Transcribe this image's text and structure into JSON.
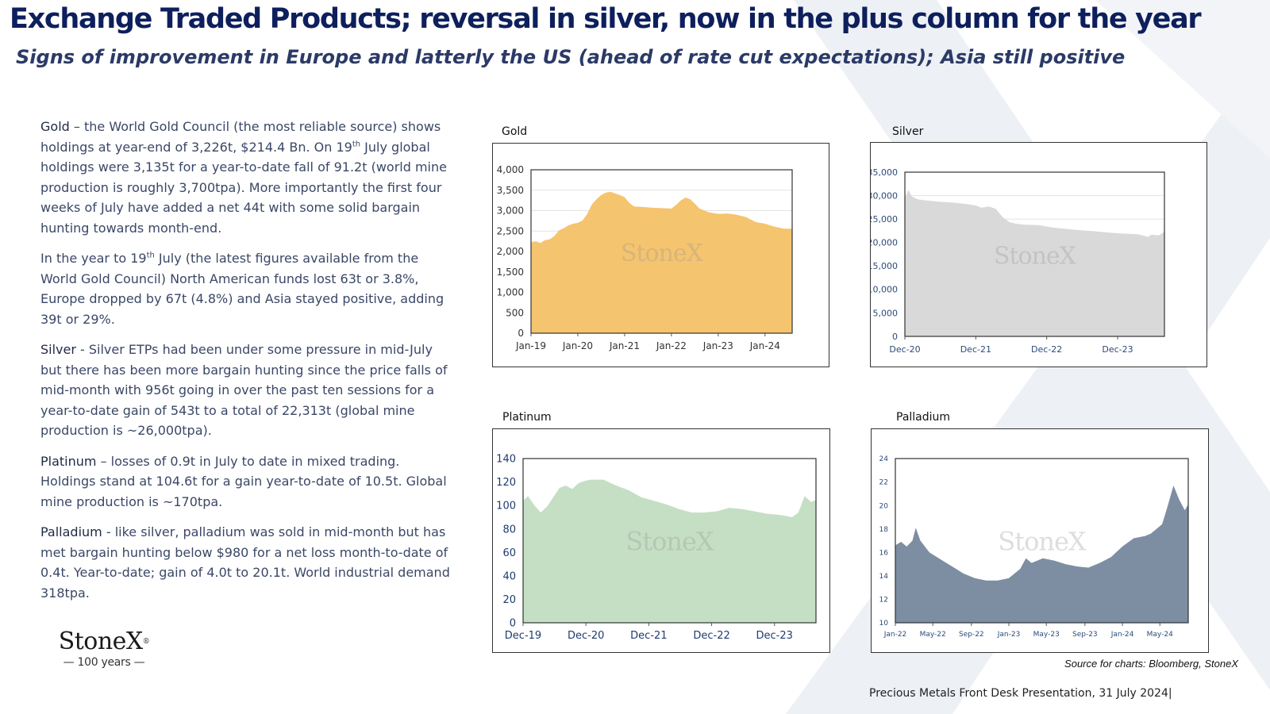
{
  "header": {
    "title": "Exchange Traded Products; reversal in silver, now in the plus column for the year",
    "subtitle": "Signs of improvement in Europe and latterly the US (ahead of rate cut expectations); Asia still positive"
  },
  "body": {
    "gold": {
      "lead": "Gold",
      "text_1": " –  the World Gold Council (the most reliable source) shows holdings at year-end of 3,226t, $214.4 Bn.  On 19",
      "sup": "th",
      "text_2": " July global holdings were 3,135t for a year-to-date fall of 91.2t (world mine production is roughly 3,700tpa). More importantly the first four weeks of July have added a net 44t with some solid bargain hunting towards month-end."
    },
    "regional": {
      "text_1": " In the year to 19",
      "sup": "th",
      "text_2": " July (the latest figures available from the World Gold Council) North American funds lost 63t or 3.8%, Europe dropped by 67t (4.8%) and Asia stayed positive, adding 39t or 29%."
    },
    "silver": {
      "lead": "Silver",
      "text": " - Silver ETPs had been under some pressure in mid-July but there has been more bargain hunting since the price falls of mid-month with 956t going in over the past ten sessions for a year-to-date gain of 543t to a total of 22,313t (global mine production is ~26,000tpa)."
    },
    "platinum": {
      "lead": "Platinum",
      "text": " – losses of 0.9t in July to date in mixed trading. Holdings stand at 104.6t for a gain year-to-date of 10.5t.  Global mine production is ~170tpa."
    },
    "palladium": {
      "lead": "Palladium",
      "text": " -  like silver, palladium was sold in mid-month but has met bargain hunting below $980 for a net loss month-to-date of 0.4t.  Year-to-date; gain of 4.0t to 20.1t. World industrial demand 318tpa."
    }
  },
  "logo": {
    "name": "StoneX",
    "reg": "®",
    "years": "— 100 years —"
  },
  "source": "Source for charts: Bloomberg, StoneX",
  "footer": "Precious Metals Front Desk Presentation, 31 July 2024|",
  "colors": {
    "navy": "#0d1f5c",
    "gold": "#f5c46f",
    "silver": "#d9d9d9",
    "platinum": "#c5dfc5",
    "palladium": "#7d8ea3"
  },
  "chart_data": [
    {
      "id": "gold",
      "type": "area",
      "title": "Gold",
      "watermark": "StoneX",
      "color": "#f5c46f",
      "xlabel": "",
      "ylabel": "",
      "x_start": 2019.0,
      "x_end": 2024.58,
      "ylim": [
        0,
        4000
      ],
      "yticks": [
        0,
        500,
        1000,
        1500,
        2000,
        2500,
        3000,
        3500,
        4000
      ],
      "ytick_labels": [
        "0",
        "500",
        "1,000",
        "1,500",
        "2,000",
        "2,500",
        "3,000",
        "3,500",
        "4,000"
      ],
      "xticks": [
        2019.0,
        2020.0,
        2021.0,
        2022.0,
        2023.0,
        2024.0
      ],
      "xtick_labels": [
        "Jan-19",
        "Jan-20",
        "Jan-21",
        "Jan-22",
        "Jan-23",
        "Jan-24"
      ],
      "grid": true,
      "series": [
        {
          "x": [
            2019.0,
            2019.1,
            2019.2,
            2019.3,
            2019.4,
            2019.5,
            2019.6,
            2019.7,
            2019.8,
            2019.9,
            2020.0,
            2020.1,
            2020.2,
            2020.3,
            2020.4,
            2020.5,
            2020.6,
            2020.7,
            2020.8,
            2020.9,
            2021.0,
            2021.1,
            2021.2,
            2021.4,
            2021.6,
            2021.8,
            2022.0,
            2022.1,
            2022.2,
            2022.3,
            2022.4,
            2022.5,
            2022.6,
            2022.8,
            2023.0,
            2023.2,
            2023.4,
            2023.6,
            2023.8,
            2024.0,
            2024.2,
            2024.4,
            2024.58
          ],
          "y": [
            2230,
            2250,
            2210,
            2280,
            2300,
            2380,
            2520,
            2570,
            2640,
            2680,
            2700,
            2760,
            2920,
            3150,
            3280,
            3380,
            3440,
            3460,
            3420,
            3380,
            3330,
            3190,
            3100,
            3090,
            3070,
            3060,
            3050,
            3140,
            3250,
            3320,
            3280,
            3170,
            3050,
            2960,
            2920,
            2930,
            2900,
            2840,
            2720,
            2680,
            2610,
            2560,
            2560
          ]
        }
      ]
    },
    {
      "id": "silver",
      "type": "area",
      "title": "Silver",
      "watermark": "StoneX",
      "color": "#d9d9d9",
      "xlabel": "",
      "ylabel": "",
      "x_start": 2020.92,
      "x_end": 2024.58,
      "ylim": [
        0,
        35000
      ],
      "yticks": [
        0,
        5000,
        10000,
        15000,
        20000,
        25000,
        30000,
        35000
      ],
      "ytick_labels": [
        "0",
        "5,000",
        "10,000",
        "15,000",
        "20,000",
        "25,000",
        "30,000",
        "35,000"
      ],
      "xticks": [
        2020.92,
        2021.92,
        2022.92,
        2023.92
      ],
      "xtick_labels": [
        "Dec-20",
        "Dec-21",
        "Dec-22",
        "Dec-23"
      ],
      "grid": true,
      "series": [
        {
          "x": [
            2020.92,
            2020.97,
            2021.02,
            2021.1,
            2021.2,
            2021.4,
            2021.6,
            2021.8,
            2021.92,
            2022.0,
            2022.1,
            2022.2,
            2022.3,
            2022.4,
            2022.5,
            2022.6,
            2022.8,
            2023.0,
            2023.2,
            2023.4,
            2023.6,
            2023.8,
            2024.0,
            2024.2,
            2024.35,
            2024.4,
            2024.5,
            2024.58
          ],
          "y": [
            29500,
            31200,
            29800,
            29200,
            29000,
            28700,
            28500,
            28200,
            27900,
            27400,
            27700,
            27200,
            25400,
            24300,
            24000,
            23800,
            23700,
            23200,
            22900,
            22600,
            22400,
            22100,
            21900,
            21800,
            21200,
            21700,
            21500,
            22300
          ]
        }
      ]
    },
    {
      "id": "platinum",
      "type": "area",
      "title": "Platinum",
      "watermark": "StoneX",
      "color": "#c5dfc5",
      "xlabel": "",
      "ylabel": "",
      "x_start": 2019.92,
      "x_end": 2024.58,
      "ylim": [
        0,
        140
      ],
      "yticks": [
        0,
        20,
        40,
        60,
        80,
        100,
        120,
        140
      ],
      "ytick_labels": [
        "0",
        "20",
        "40",
        "60",
        "80",
        "100",
        "120",
        "140"
      ],
      "xticks": [
        2019.92,
        2020.92,
        2021.92,
        2022.92,
        2023.92
      ],
      "xtick_labels": [
        "Dec-19",
        "Dec-20",
        "Dec-21",
        "Dec-22",
        "Dec-23"
      ],
      "grid": false,
      "series": [
        {
          "x": [
            2019.92,
            2020.0,
            2020.1,
            2020.2,
            2020.3,
            2020.4,
            2020.5,
            2020.6,
            2020.7,
            2020.8,
            2020.9,
            2021.0,
            2021.2,
            2021.4,
            2021.6,
            2021.8,
            2022.0,
            2022.2,
            2022.4,
            2022.6,
            2022.8,
            2023.0,
            2023.2,
            2023.4,
            2023.6,
            2023.8,
            2024.0,
            2024.1,
            2024.2,
            2024.3,
            2024.4,
            2024.5,
            2024.58
          ],
          "y": [
            104,
            108,
            100,
            94,
            99,
            107,
            115,
            117,
            114,
            119,
            121,
            122,
            122,
            117,
            113,
            107,
            104,
            101,
            97,
            94,
            94,
            95,
            98,
            97,
            95,
            93,
            92,
            91,
            90,
            94,
            108,
            103,
            104.6
          ]
        }
      ]
    },
    {
      "id": "palladium",
      "type": "area",
      "title": "Palladium",
      "watermark": "StoneX",
      "color": "#7d8ea3",
      "xlabel": "",
      "ylabel": "",
      "x_start": 2022.0,
      "x_end": 2024.58,
      "ylim": [
        10,
        24
      ],
      "yticks": [
        10,
        12,
        14,
        16,
        18,
        20,
        22,
        24
      ],
      "ytick_labels": [
        "10",
        "12",
        "14",
        "16",
        "18",
        "20",
        "22",
        "24"
      ],
      "xticks": [
        2022.0,
        2022.33,
        2022.67,
        2023.0,
        2023.33,
        2023.67,
        2024.0,
        2024.33
      ],
      "xtick_labels": [
        "Jan-22",
        "May-22",
        "Sep-22",
        "Jan-23",
        "May-23",
        "Sep-23",
        "Jan-24",
        "May-24"
      ],
      "grid": false,
      "series": [
        {
          "x": [
            2022.0,
            2022.05,
            2022.1,
            2022.15,
            2022.18,
            2022.22,
            2022.3,
            2022.4,
            2022.5,
            2022.6,
            2022.7,
            2022.8,
            2022.9,
            2023.0,
            2023.1,
            2023.15,
            2023.2,
            2023.3,
            2023.4,
            2023.5,
            2023.6,
            2023.7,
            2023.8,
            2023.9,
            2024.0,
            2024.1,
            2024.2,
            2024.25,
            2024.3,
            2024.35,
            2024.4,
            2024.45,
            2024.5,
            2024.55,
            2024.58
          ],
          "y": [
            16.6,
            16.9,
            16.5,
            17.0,
            18.1,
            17.0,
            16.0,
            15.4,
            14.8,
            14.2,
            13.8,
            13.6,
            13.6,
            13.8,
            14.6,
            15.5,
            15.1,
            15.5,
            15.3,
            15.0,
            14.8,
            14.7,
            15.1,
            15.6,
            16.5,
            17.2,
            17.4,
            17.6,
            18.0,
            18.4,
            20.0,
            21.7,
            20.5,
            19.6,
            20.1
          ]
        }
      ]
    }
  ]
}
